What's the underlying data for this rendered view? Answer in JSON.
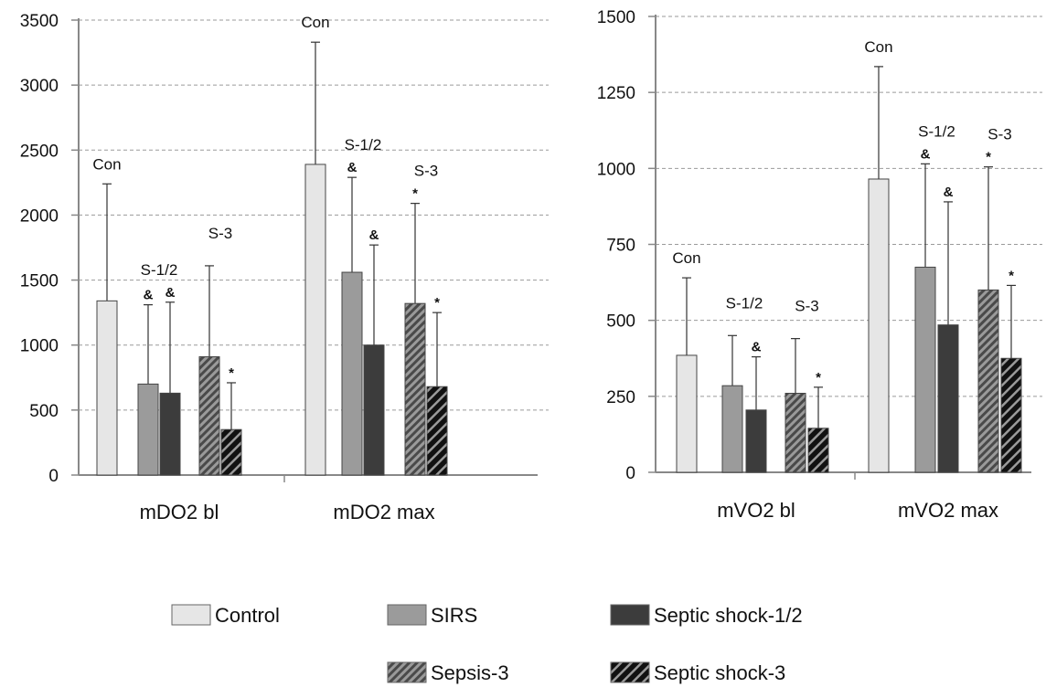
{
  "chart_data": [
    {
      "type": "bar",
      "yticks": [
        0,
        500,
        1000,
        1500,
        2000,
        2500,
        3000,
        3500
      ],
      "ylim": [
        0,
        3500
      ],
      "grid": true,
      "legend_position": "bottom",
      "categories": [
        "mDO2 bl",
        "mDO2 max"
      ],
      "series": [
        {
          "name": "Control",
          "values": [
            1340,
            2390
          ],
          "errors": [
            2240,
            3330
          ]
        },
        {
          "name": "SIRS",
          "values": [
            700,
            1560
          ],
          "errors": [
            1310,
            2290
          ]
        },
        {
          "name": "Septic shock-1/2",
          "values": [
            630,
            1000
          ],
          "errors": [
            1330,
            1770
          ]
        },
        {
          "name": "Sepsis-3",
          "values": [
            910,
            1320
          ],
          "errors": [
            1610,
            2090
          ]
        },
        {
          "name": "Septic shock-3",
          "values": [
            350,
            680
          ],
          "errors": [
            710,
            1250
          ]
        }
      ],
      "annotations": [
        {
          "text": "Con",
          "category": 0,
          "series": 0
        },
        {
          "text": "S-1/2",
          "category": 0,
          "series": 1.5
        },
        {
          "text": "S-3",
          "category": 0,
          "series": 3.5
        },
        {
          "text": "&",
          "category": 0,
          "series": 1
        },
        {
          "text": "&",
          "category": 0,
          "series": 2
        },
        {
          "text": "*",
          "category": 0,
          "series": 4
        },
        {
          "text": "Con",
          "category": 1,
          "series": 0
        },
        {
          "text": "S-1/2",
          "category": 1,
          "series": 1.5
        },
        {
          "text": "S-3",
          "category": 1,
          "series": 3.5
        },
        {
          "text": "&",
          "category": 1,
          "series": 1
        },
        {
          "text": "&",
          "category": 1,
          "series": 2
        },
        {
          "text": "*",
          "category": 1,
          "series": 3
        },
        {
          "text": "*",
          "category": 1,
          "series": 4
        }
      ]
    },
    {
      "type": "bar",
      "yticks": [
        0,
        250,
        500,
        750,
        1000,
        1250,
        1500
      ],
      "ylim": [
        0,
        1500
      ],
      "grid": true,
      "legend_position": "bottom",
      "categories": [
        "mVO2 bl",
        "mVO2 max"
      ],
      "series": [
        {
          "name": "Control",
          "values": [
            385,
            965
          ],
          "errors": [
            640,
            1335
          ]
        },
        {
          "name": "SIRS",
          "values": [
            285,
            675
          ],
          "errors": [
            450,
            1015
          ]
        },
        {
          "name": "Septic shock-1/2",
          "values": [
            205,
            485
          ],
          "errors": [
            380,
            890
          ]
        },
        {
          "name": "Sepsis-3",
          "values": [
            260,
            600
          ],
          "errors": [
            440,
            1005
          ]
        },
        {
          "name": "Septic shock-3",
          "values": [
            145,
            375
          ],
          "errors": [
            280,
            615
          ]
        }
      ],
      "annotations": [
        {
          "text": "Con",
          "category": 0,
          "series": 0
        },
        {
          "text": "S-1/2",
          "category": 0,
          "series": 1.5
        },
        {
          "text": "S-3",
          "category": 0,
          "series": 3.5
        },
        {
          "text": "&",
          "category": 0,
          "series": 2
        },
        {
          "text": "*",
          "category": 0,
          "series": 4
        },
        {
          "text": "Con",
          "category": 1,
          "series": 0
        },
        {
          "text": "S-1/2",
          "category": 1,
          "series": 1.5
        },
        {
          "text": "S-3",
          "category": 1,
          "series": 3.5
        },
        {
          "text": "&",
          "category": 1,
          "series": 1
        },
        {
          "text": "&",
          "category": 1,
          "series": 2
        },
        {
          "text": "*",
          "category": 1,
          "series": 3
        },
        {
          "text": "*",
          "category": 1,
          "series": 4
        }
      ]
    }
  ],
  "legend": [
    {
      "label": "Control",
      "fill": "#e6e6e6",
      "pattern": "none"
    },
    {
      "label": "SIRS",
      "fill": "#9b9b9b",
      "pattern": "none"
    },
    {
      "label": "Septic shock-1/2",
      "fill": "#3c3c3c",
      "pattern": "none"
    },
    {
      "label": "Sepsis-3",
      "fill": "#7a7a7a",
      "pattern": "hatch-light"
    },
    {
      "label": "Septic shock-3",
      "fill": "#1a1a1a",
      "pattern": "hatch-dark"
    }
  ]
}
